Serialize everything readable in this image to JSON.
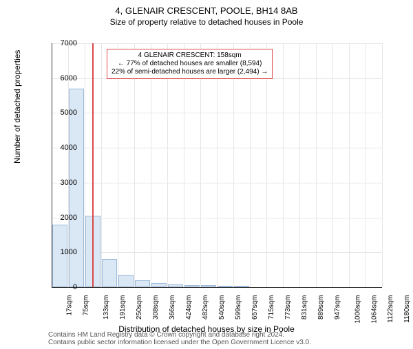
{
  "header": {
    "title": "4, GLENAIR CRESCENT, POOLE, BH14 8AB",
    "subtitle": "Size of property relative to detached houses in Poole"
  },
  "chart": {
    "type": "histogram",
    "ylabel": "Number of detached properties",
    "xlabel": "Distribution of detached houses by size in Poole",
    "ylim": [
      0,
      7000
    ],
    "ytick_step": 1000,
    "yticks": [
      0,
      1000,
      2000,
      3000,
      4000,
      5000,
      6000,
      7000
    ],
    "xticks": [
      "17sqm",
      "75sqm",
      "133sqm",
      "191sqm",
      "250sqm",
      "308sqm",
      "366sqm",
      "424sqm",
      "482sqm",
      "540sqm",
      "599sqm",
      "657sqm",
      "715sqm",
      "773sqm",
      "831sqm",
      "889sqm",
      "947sqm",
      "1006sqm",
      "1064sqm",
      "1122sqm",
      "1180sqm"
    ],
    "values": [
      1800,
      5700,
      2050,
      800,
      350,
      200,
      120,
      80,
      60,
      50,
      40,
      30,
      0,
      0,
      0,
      0,
      0,
      0,
      0,
      0
    ],
    "bar_fill": "#dae7f5",
    "bar_stroke": "#9bb8d8",
    "background_color": "#ffffff",
    "grid_color": "#e6e6e6",
    "axis_color": "#333333",
    "marker_color": "#d94848",
    "marker_x_index": 2.45,
    "annotation": {
      "line1": "4 GLENAIR CRESCENT: 158sqm",
      "line2": "← 77% of detached houses are smaller (8,594)",
      "line3": "22% of semi-detached houses are larger (2,494) →",
      "border_color": "#d94848"
    }
  },
  "footer": {
    "line1": "Contains HM Land Registry data © Crown copyright and database right 2024.",
    "line2": "Contains public sector information licensed under the Open Government Licence v3.0."
  }
}
